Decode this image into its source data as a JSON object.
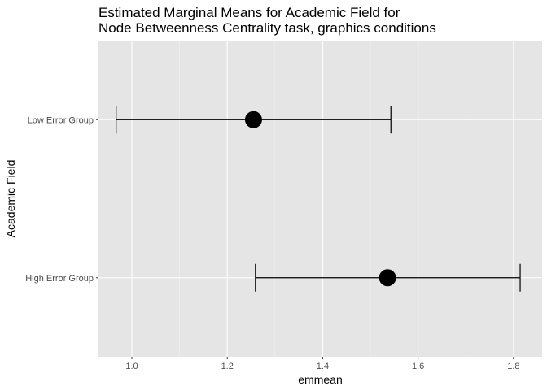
{
  "chart_data": {
    "type": "scatter",
    "title_lines": [
      "Estimated Marginal Means for Academic Field for",
      "Node Betweenness Centrality task, graphics conditions"
    ],
    "xlabel": "emmean",
    "ylabel": "Academic Field",
    "xlim": [
      0.93,
      1.86
    ],
    "x_ticks": [
      1.0,
      1.2,
      1.4,
      1.6,
      1.8
    ],
    "x_tick_labels": [
      "1.0",
      "1.2",
      "1.4",
      "1.6",
      "1.8"
    ],
    "grid": true,
    "categories": [
      "Low Error Group",
      "High Error Group"
    ],
    "points": [
      {
        "group": "Low Error Group",
        "emmean": 1.255,
        "lower": 0.967,
        "upper": 1.543
      },
      {
        "group": "High Error Group",
        "emmean": 1.536,
        "lower": 1.259,
        "upper": 1.814
      }
    ],
    "colors": {
      "panel": "#e5e5e5",
      "grid_major": "#ffffff",
      "grid_minor": "#f2f2f2",
      "marks": "#000000",
      "tick_text": "#4d4d4d"
    }
  }
}
